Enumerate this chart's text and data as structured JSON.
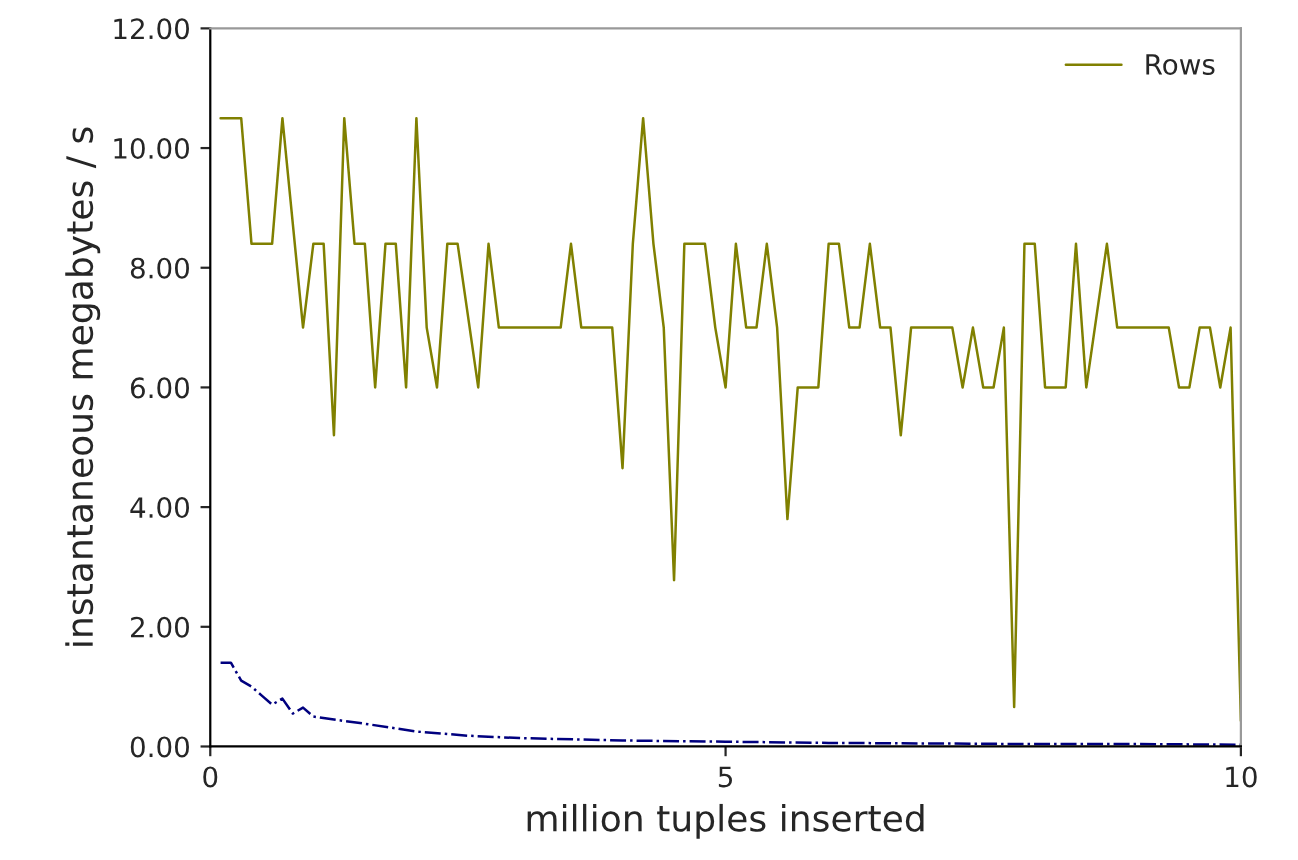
{
  "chart_data": {
    "type": "line",
    "xlabel": "million tuples inserted",
    "ylabel": "instantaneous megabytes / s",
    "xlim": [
      0,
      10
    ],
    "xticks": [
      0,
      5,
      10
    ],
    "ylim": [
      0,
      12
    ],
    "yticks": [
      {
        "value": 0,
        "label": "0.00"
      },
      {
        "value": 2,
        "label": "2.00"
      },
      {
        "value": 4,
        "label": "4.00"
      },
      {
        "value": 6,
        "label": "6.00"
      },
      {
        "value": 8,
        "label": "8.00"
      },
      {
        "value": 10,
        "label": "10.00"
      },
      {
        "value": 12,
        "label": "12.00"
      }
    ],
    "grid": false,
    "legend": "top right",
    "marker": "none",
    "series": [
      {
        "color": "#00007f",
        "line_style": "dashdot",
        "x": [
          0.1,
          0.2,
          0.3,
          0.4,
          0.5,
          0.6,
          0.7,
          0.8,
          0.9,
          1.0,
          1.2,
          1.5,
          2.0,
          2.5,
          3.0,
          4.0,
          5.0,
          6.0,
          7.0,
          8.0,
          9.0,
          10.0
        ],
        "values": [
          1.4,
          1.4,
          1.1,
          1.0,
          0.85,
          0.7,
          0.8,
          0.55,
          0.65,
          0.5,
          0.45,
          0.38,
          0.25,
          0.18,
          0.14,
          0.1,
          0.08,
          0.06,
          0.05,
          0.04,
          0.04,
          0.03
        ]
      },
      {
        "name": "Rows",
        "color": "#808000",
        "line_style": "solid",
        "x": [
          0.1,
          0.3,
          0.4,
          0.6,
          0.7,
          0.9,
          1.0,
          1.1,
          1.2,
          1.3,
          1.4,
          1.5,
          1.6,
          1.7,
          1.8,
          1.9,
          2.0,
          2.1,
          2.2,
          2.3,
          2.4,
          2.6,
          2.7,
          2.8,
          3.4,
          3.5,
          3.6,
          3.9,
          4.0,
          4.1,
          4.2,
          4.3,
          4.4,
          4.5,
          4.6,
          4.8,
          4.9,
          5.0,
          5.1,
          5.2,
          5.3,
          5.4,
          5.5,
          5.6,
          5.7,
          5.9,
          6.0,
          6.1,
          6.2,
          6.3,
          6.4,
          6.5,
          6.6,
          6.7,
          6.8,
          7.2,
          7.3,
          7.4,
          7.5,
          7.6,
          7.7,
          7.8,
          7.9,
          8.0,
          8.1,
          8.3,
          8.4,
          8.5,
          8.7,
          8.8,
          9.3,
          9.4,
          9.5,
          9.6,
          9.7,
          9.8,
          9.9,
          10.0
        ],
        "values": [
          10.5,
          10.5,
          8.4,
          8.4,
          10.5,
          7.0,
          8.4,
          8.4,
          5.2,
          10.5,
          8.4,
          8.4,
          6.0,
          8.4,
          8.4,
          6.0,
          10.5,
          7.0,
          6.0,
          8.4,
          8.4,
          6.0,
          8.4,
          7.0,
          7.0,
          8.4,
          7.0,
          7.0,
          4.65,
          8.4,
          10.5,
          8.4,
          7.0,
          2.78,
          8.4,
          8.4,
          7.0,
          6.0,
          8.4,
          7.0,
          7.0,
          8.4,
          7.0,
          3.8,
          6.0,
          6.0,
          8.4,
          8.4,
          7.0,
          7.0,
          8.4,
          7.0,
          7.0,
          5.2,
          7.0,
          7.0,
          6.0,
          7.0,
          6.0,
          6.0,
          7.0,
          0.66,
          8.4,
          8.4,
          6.0,
          6.0,
          8.4,
          6.0,
          8.4,
          7.0,
          7.0,
          6.0,
          6.0,
          7.0,
          7.0,
          6.0,
          7.0,
          0.43
        ]
      }
    ]
  }
}
